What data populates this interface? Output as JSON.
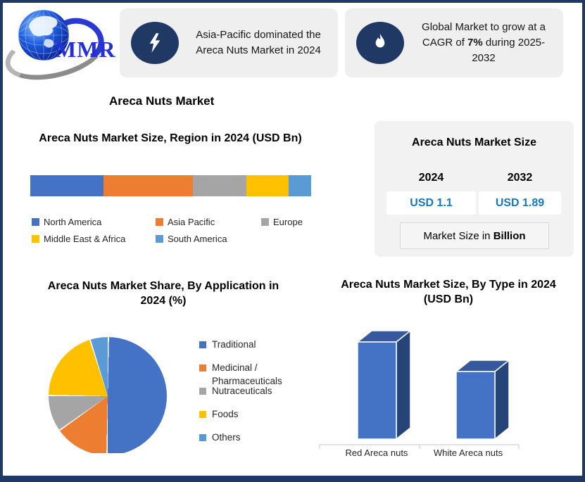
{
  "logo": {
    "text": "MMR"
  },
  "main_title": "Areca Nuts Market",
  "callouts": [
    {
      "icon": "lightning-icon",
      "text": "Asia-Pacific dominated the Areca Nuts Market in 2024"
    },
    {
      "icon": "flame-icon",
      "text_prefix": "Global Market to grow at a CAGR of ",
      "text_bold": "7%",
      "text_suffix": " during 2025-2032"
    }
  ],
  "market_size_panel": {
    "title": "Areca Nuts Market Size",
    "year_start": "2024",
    "year_end": "2032",
    "value_start": "USD 1.1",
    "value_end": "USD 1.89",
    "note_prefix": "Market Size in ",
    "note_bold": "Billion",
    "value_color": "#1878BE"
  },
  "chart_data": [
    {
      "type": "bar",
      "subtype": "horizontal-stacked",
      "title": "Areca Nuts Market Size, Region in 2024 (USD Bn)",
      "categories": [
        "North America",
        "Asia Pacific",
        "Europe",
        "Middle East & Africa",
        "South America"
      ],
      "values": [
        26,
        32,
        19,
        15,
        8
      ],
      "values_note": "percent of bar width, estimated (no data labels shown)",
      "colors": [
        "#4472C4",
        "#ED7D31",
        "#A5A5A5",
        "#FFC000",
        "#5B9BD5"
      ],
      "legend_position": "bottom"
    },
    {
      "type": "pie",
      "title": "Areca Nuts Market Share, By Application in 2024 (%)",
      "labels": [
        "Traditional",
        "Medicinal / Pharmaceuticals",
        "Nutraceuticals",
        "Foods",
        "Others"
      ],
      "values": [
        50,
        15,
        10,
        20,
        5
      ],
      "values_note": "percent, estimated from slice angles (no data labels shown)",
      "colors": [
        "#4472C4",
        "#ED7D31",
        "#A5A5A5",
        "#FFC000",
        "#5B9BD5"
      ],
      "start_angle_deg": 0,
      "direction": "clockwise",
      "legend_position": "right"
    },
    {
      "type": "bar",
      "subtype": "3d-column",
      "title": "Areca Nuts Market Size, By Type in 2024 (USD Bn)",
      "categories": [
        "Red Areca nuts",
        "White Areca nuts"
      ],
      "values": [
        0.65,
        0.45
      ],
      "values_note": "USD Bn, estimated from bar heights (no data labels shown)",
      "colors": {
        "front": "#4472C4",
        "top": "#35599C",
        "side": "#264478"
      }
    }
  ]
}
